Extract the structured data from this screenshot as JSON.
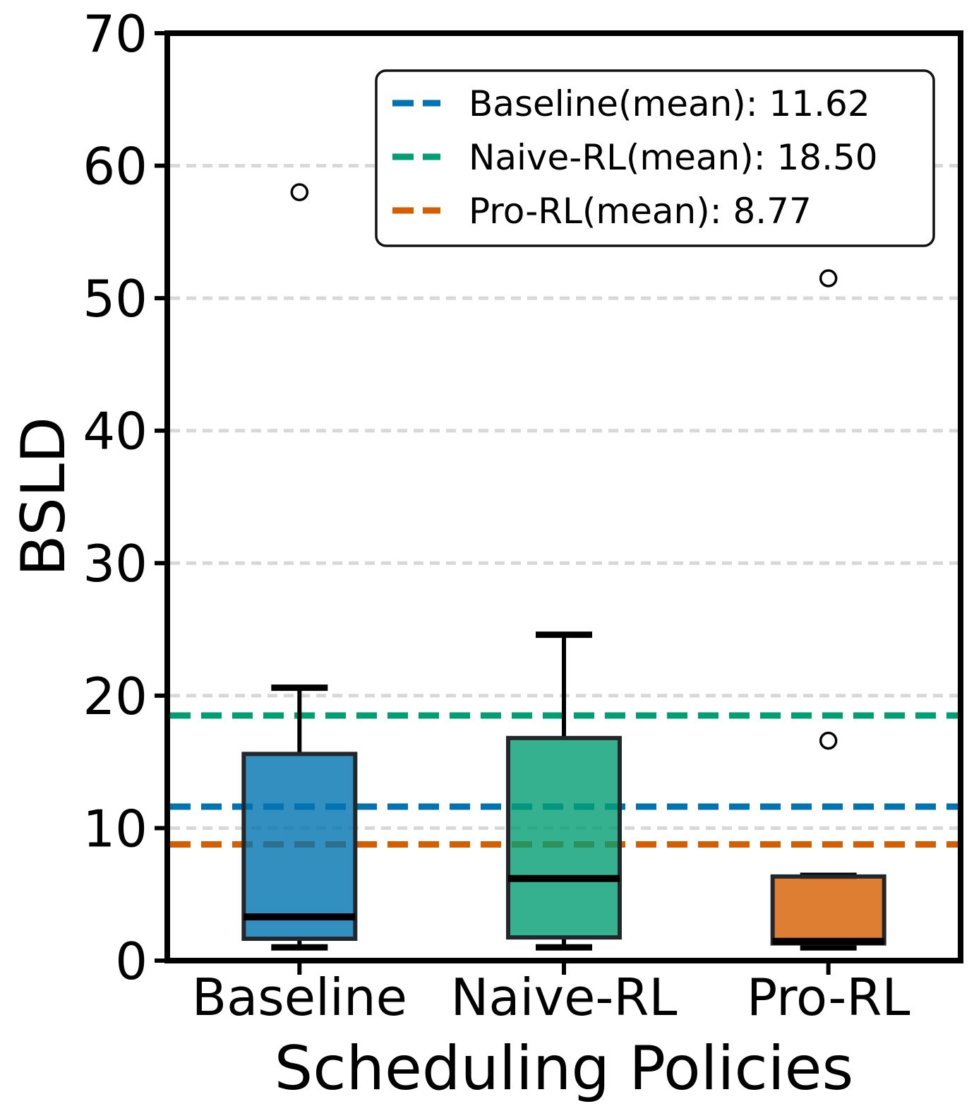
{
  "figure": {
    "background": "#ffffff"
  },
  "chart_data": {
    "type": "box",
    "title": "",
    "ylabel": "BSLD",
    "xlabel": "Scheduling Policies",
    "ylim": [
      0,
      70
    ],
    "yticks": [
      0,
      10,
      20,
      30,
      40,
      50,
      60,
      70
    ],
    "grid_values": [
      10,
      20,
      30,
      40,
      50,
      60
    ],
    "grid_on": true,
    "categories": [
      "Baseline",
      "Naive-RL",
      "Pro-RL"
    ],
    "boxes": [
      {
        "category": "Baseline",
        "color": "#0173b2",
        "whisker_low": 1.0,
        "q1": 1.65,
        "median": 3.3,
        "q3": 15.6,
        "whisker_high": 20.6,
        "outliers": [
          58.0
        ],
        "mean": 11.62
      },
      {
        "category": "Naive-RL",
        "color": "#029e73",
        "whisker_low": 1.0,
        "q1": 1.75,
        "median": 6.2,
        "q3": 16.8,
        "whisker_high": 24.6,
        "outliers": [],
        "mean": 18.5
      },
      {
        "category": "Pro-RL",
        "color": "#d55e00",
        "whisker_low": 1.0,
        "q1": 1.3,
        "median": 1.45,
        "q3": 6.35,
        "whisker_high": 6.4,
        "outliers": [
          16.6,
          51.5
        ],
        "mean": 8.77
      }
    ],
    "legend": {
      "position": "upper center",
      "entries": [
        {
          "label": "Baseline(mean): 11.62",
          "color": "#0173b2"
        },
        {
          "label": "Naive-RL(mean): 18.50",
          "color": "#029e73"
        },
        {
          "label": "Pro-RL(mean): 8.77",
          "color": "#d55e00"
        }
      ]
    },
    "style": {
      "grid_color": "#d8d8d8",
      "box_edge_color": "#23272b",
      "box_fill_opacity": 0.8,
      "line_color": "#000000",
      "outlier_fill": "#ffffff",
      "background": "#ffffff"
    }
  }
}
